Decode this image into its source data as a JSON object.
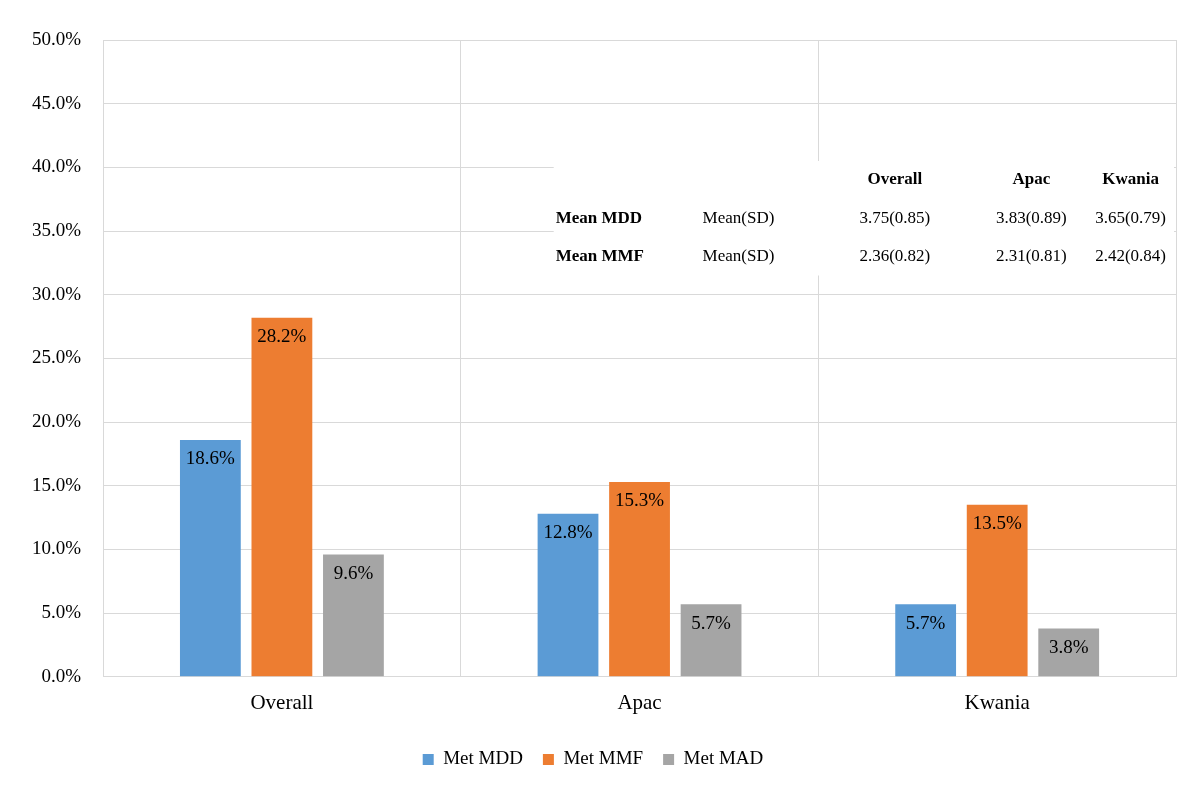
{
  "chart_data": {
    "type": "bar",
    "categories": [
      "Overall",
      "Apac",
      "Kwania"
    ],
    "series": [
      {
        "name": "Met MDD",
        "color": "#5b9bd5",
        "values": [
          18.6,
          12.8,
          5.7
        ],
        "value_labels": [
          "18.6%",
          "12.8%",
          "5.7%"
        ]
      },
      {
        "name": "Met MMF",
        "color": "#ed7d31",
        "values": [
          28.2,
          15.3,
          13.5
        ],
        "value_labels": [
          "28.2%",
          "15.3%",
          "13.5%"
        ]
      },
      {
        "name": "Met MAD",
        "color": "#a5a5a5",
        "values": [
          9.6,
          5.7,
          3.8
        ],
        "value_labels": [
          "9.6%",
          "5.7%",
          "3.8%"
        ]
      }
    ],
    "ylim": [
      0,
      50
    ],
    "yticks": [
      {
        "value": 0,
        "label": "0.0%"
      },
      {
        "value": 5,
        "label": "5.0%"
      },
      {
        "value": 10,
        "label": "10.0%"
      },
      {
        "value": 15,
        "label": "15.0%"
      },
      {
        "value": 20,
        "label": "20.0%"
      },
      {
        "value": 25,
        "label": "25.0%"
      },
      {
        "value": 30,
        "label": "30.0%"
      },
      {
        "value": 35,
        "label": "35.0%"
      },
      {
        "value": 40,
        "label": "40.0%"
      },
      {
        "value": 45,
        "label": "45.0%"
      },
      {
        "value": 50,
        "label": "50.0%"
      }
    ],
    "grid": true,
    "legend": "bottom",
    "annotations": [
      "Overall",
      "Apac",
      "Kwania",
      "Mean MDD",
      "Mean(SD)",
      "3.75(0.85)",
      "3.83(0.89)",
      "3.65(0.79)",
      "Mean MMF",
      "Mean(SD)",
      "2.36(0.82)",
      "2.31(0.81)",
      "2.42(0.84)"
    ]
  }
}
